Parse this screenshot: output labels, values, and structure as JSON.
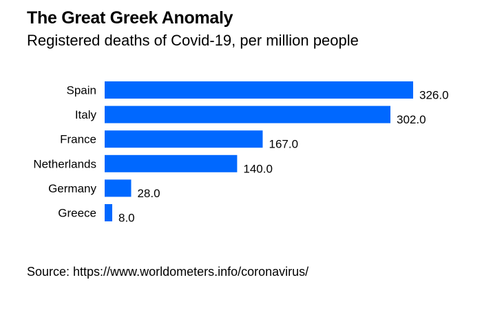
{
  "chart_data": {
    "type": "bar",
    "orientation": "horizontal",
    "title": "The Great Greek Anomaly",
    "subtitle": "Registered deaths of Covid-19, per million people",
    "categories": [
      "Spain",
      "Italy",
      "France",
      "Netherlands",
      "Germany",
      "Greece"
    ],
    "values": [
      326.0,
      302.0,
      167.0,
      140.0,
      28.0,
      8.0
    ],
    "value_labels": [
      "326.0",
      "302.0",
      "167.0",
      "140.0",
      "28.0",
      "8.0"
    ],
    "bar_color": "#0068ff",
    "xlim": [
      0,
      326
    ],
    "grid": false,
    "source": "Source: https://www.worldometers.info/coronavirus/"
  }
}
